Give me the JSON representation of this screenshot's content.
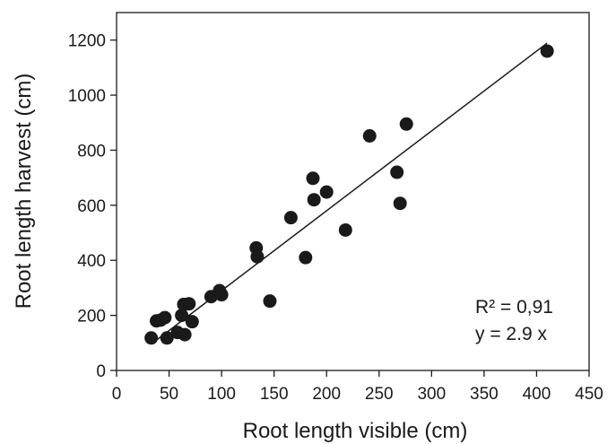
{
  "chart_data": {
    "type": "scatter",
    "xlabel": "Root length visible (cm)",
    "ylabel": "Root length harvest (cm)",
    "xlim": [
      0,
      450
    ],
    "ylim": [
      0,
      1300
    ],
    "xticks": [
      0,
      50,
      100,
      150,
      200,
      250,
      300,
      350,
      400,
      450
    ],
    "yticks": [
      0,
      200,
      400,
      600,
      800,
      1000,
      1200
    ],
    "grid": false,
    "series": [
      {
        "marker_color": "#1a1a1a",
        "points": [
          [
            33,
            118
          ],
          [
            38,
            180
          ],
          [
            42,
            183
          ],
          [
            46,
            192
          ],
          [
            48,
            118
          ],
          [
            58,
            138
          ],
          [
            62,
            200
          ],
          [
            64,
            240
          ],
          [
            65,
            130
          ],
          [
            69,
            242
          ],
          [
            72,
            177
          ],
          [
            90,
            268
          ],
          [
            98,
            290
          ],
          [
            100,
            275
          ],
          [
            133,
            445
          ],
          [
            134,
            413
          ],
          [
            146,
            252
          ],
          [
            166,
            555
          ],
          [
            180,
            410
          ],
          [
            187,
            698
          ],
          [
            188,
            620
          ],
          [
            200,
            648
          ],
          [
            218,
            510
          ],
          [
            241,
            852
          ],
          [
            267,
            720
          ],
          [
            270,
            607
          ],
          [
            276,
            895
          ],
          [
            410,
            1160
          ]
        ]
      }
    ],
    "fit_line": {
      "slope": 2.9,
      "x_range": [
        33,
        410
      ],
      "color": "#1a1a1a"
    },
    "annotations": [
      "R² = 0,91",
      "y = 2.9 x"
    ]
  }
}
